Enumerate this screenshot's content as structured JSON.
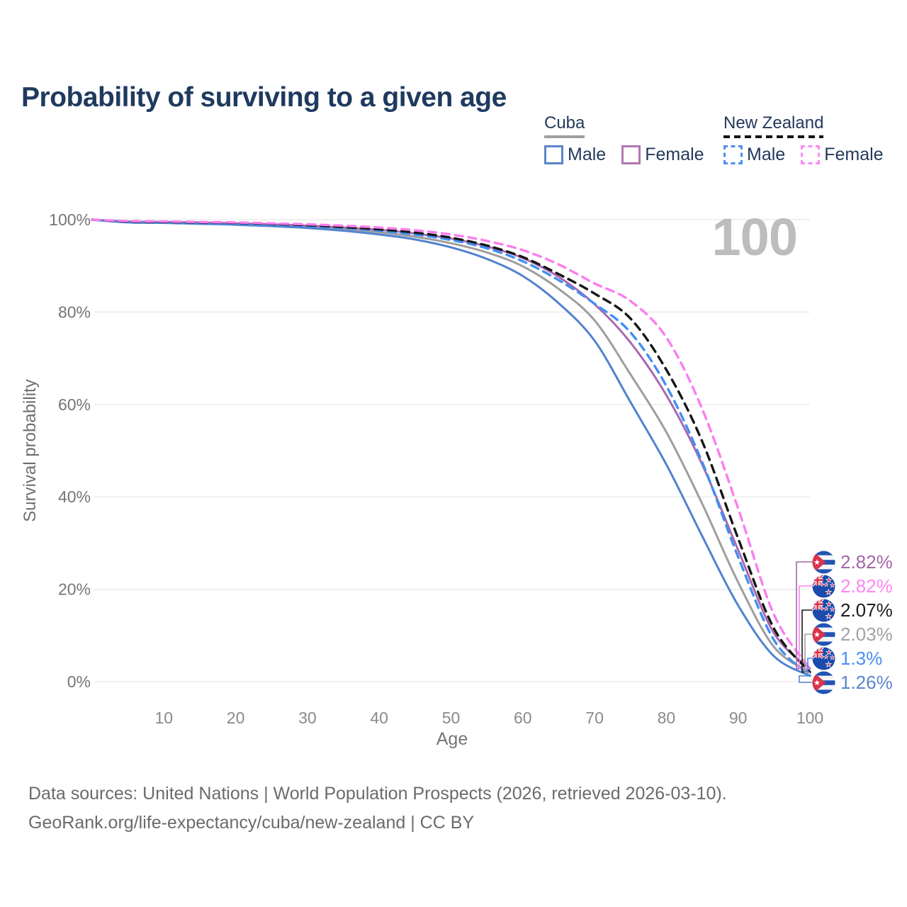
{
  "title": "Probability of surviving to a given age",
  "watermark_age": "100",
  "legend": {
    "groups": [
      {
        "label": "Cuba",
        "line_style": "solid",
        "line_color": "#9e9ea3",
        "items": [
          {
            "label": "Male",
            "color": "#5b84c8",
            "dashed": false
          },
          {
            "label": "Female",
            "color": "#b277b2",
            "dashed": false
          }
        ]
      },
      {
        "label": "New Zealand",
        "line_style": "dashed",
        "line_color": "#141414",
        "items": [
          {
            "label": "Male",
            "color": "#4e8df7",
            "dashed": true
          },
          {
            "label": "Female",
            "color": "#fc8df5",
            "dashed": true
          }
        ]
      }
    ]
  },
  "chart_data": {
    "type": "line",
    "title": "Probability of surviving to a given age",
    "xlabel": "Age",
    "ylabel": "Survival probability",
    "xlim": [
      0,
      100
    ],
    "ylim": [
      0,
      100
    ],
    "grid": "horizontal",
    "legend_position": "top-right",
    "x_ticks": [
      10,
      20,
      30,
      40,
      50,
      60,
      70,
      80,
      90,
      100
    ],
    "y_ticks": [
      "0%",
      "20%",
      "40%",
      "60%",
      "80%",
      "100%"
    ],
    "x": [
      0,
      5,
      10,
      15,
      20,
      25,
      30,
      35,
      40,
      45,
      50,
      55,
      60,
      65,
      70,
      75,
      80,
      85,
      90,
      95,
      100
    ],
    "series": [
      {
        "name": "Cuba Both sexes",
        "country": "Cuba",
        "sex": "Both",
        "color": "#9e9e9e",
        "dashed": false,
        "end_label": "2.03%",
        "values": [
          100,
          99.5,
          99.4,
          99.3,
          99.1,
          98.9,
          98.5,
          98.0,
          97.3,
          96.3,
          94.9,
          92.9,
          89.9,
          85.0,
          78.2,
          66.5,
          54.0,
          38.5,
          21.5,
          7.5,
          2.03
        ]
      },
      {
        "name": "Cuba Female",
        "country": "Cuba",
        "sex": "Female",
        "color": "#a869ae",
        "dashed": false,
        "end_label": "2.82%",
        "values": [
          100,
          99.6,
          99.5,
          99.4,
          99.2,
          99.0,
          98.7,
          98.3,
          97.8,
          97.0,
          95.9,
          94.2,
          91.7,
          87.6,
          81.7,
          73.4,
          62.0,
          47.0,
          28.5,
          10.5,
          2.82
        ]
      },
      {
        "name": "Cuba Male",
        "country": "Cuba",
        "sex": "Male",
        "color": "#5282cf",
        "dashed": false,
        "end_label": "1.26%",
        "values": [
          100,
          99.4,
          99.3,
          99.1,
          98.9,
          98.6,
          98.2,
          97.6,
          96.8,
          95.7,
          94.0,
          91.5,
          87.8,
          81.9,
          73.8,
          60.5,
          47.0,
          31.5,
          16.5,
          5.5,
          1.26
        ]
      },
      {
        "name": "New Zealand Male",
        "country": "New Zealand",
        "sex": "Male",
        "color": "#418ff2",
        "dashed": true,
        "end_label": "1.3%",
        "values": [
          100,
          99.5,
          99.4,
          99.3,
          99.1,
          98.9,
          98.6,
          98.2,
          97.6,
          96.8,
          95.6,
          93.8,
          91.0,
          86.9,
          81.8,
          75.6,
          64.0,
          47.5,
          27.0,
          9.0,
          1.3
        ]
      },
      {
        "name": "New Zealand Both sexes",
        "country": "New Zealand",
        "sex": "Both",
        "color": "#161616",
        "dashed": true,
        "end_label": "2.07%",
        "values": [
          100,
          99.6,
          99.5,
          99.4,
          99.3,
          99.1,
          98.8,
          98.4,
          97.9,
          97.2,
          96.1,
          94.4,
          91.9,
          88.2,
          84.0,
          78.6,
          67.5,
          52.0,
          31.0,
          11.5,
          2.07
        ]
      },
      {
        "name": "New Zealand Female",
        "country": "New Zealand",
        "sex": "Female",
        "color": "#fb7def",
        "dashed": true,
        "end_label": "2.82%",
        "values": [
          100,
          99.7,
          99.6,
          99.5,
          99.4,
          99.2,
          99.0,
          98.7,
          98.3,
          97.7,
          96.8,
          95.4,
          93.4,
          90.3,
          86.2,
          82.4,
          74.5,
          59.0,
          37.5,
          14.5,
          2.82
        ]
      }
    ]
  },
  "end_labels": [
    {
      "series": "Cuba Female",
      "flag": "cuba",
      "text": "2.82%",
      "end_value": 2.82,
      "color": "#a565a8"
    },
    {
      "series": "New Zealand Female",
      "flag": "new-zealand",
      "text": "2.82%",
      "end_value": 2.82,
      "color": "#fd86f3"
    },
    {
      "series": "New Zealand Both sexes",
      "flag": "new-zealand",
      "text": "2.07%",
      "end_value": 2.07,
      "color": "#1c1c1c"
    },
    {
      "series": "Cuba Both sexes",
      "flag": "cuba",
      "text": "2.03%",
      "end_value": 2.03,
      "color": "#a2a2a2"
    },
    {
      "series": "New Zealand Male",
      "flag": "new-zealand",
      "text": "1.3%",
      "end_value": 1.3,
      "color": "#4a8df5"
    },
    {
      "series": "Cuba Male",
      "flag": "cuba",
      "text": "1.26%",
      "end_value": 1.26,
      "color": "#5c86cb"
    }
  ],
  "footer": {
    "line1": "Data sources: United Nations | World Population Prospects (2026, retrieved 2026-03-10).",
    "line2": "GeoRank.org/life-expectancy/cuba/new-zealand | CC BY"
  }
}
